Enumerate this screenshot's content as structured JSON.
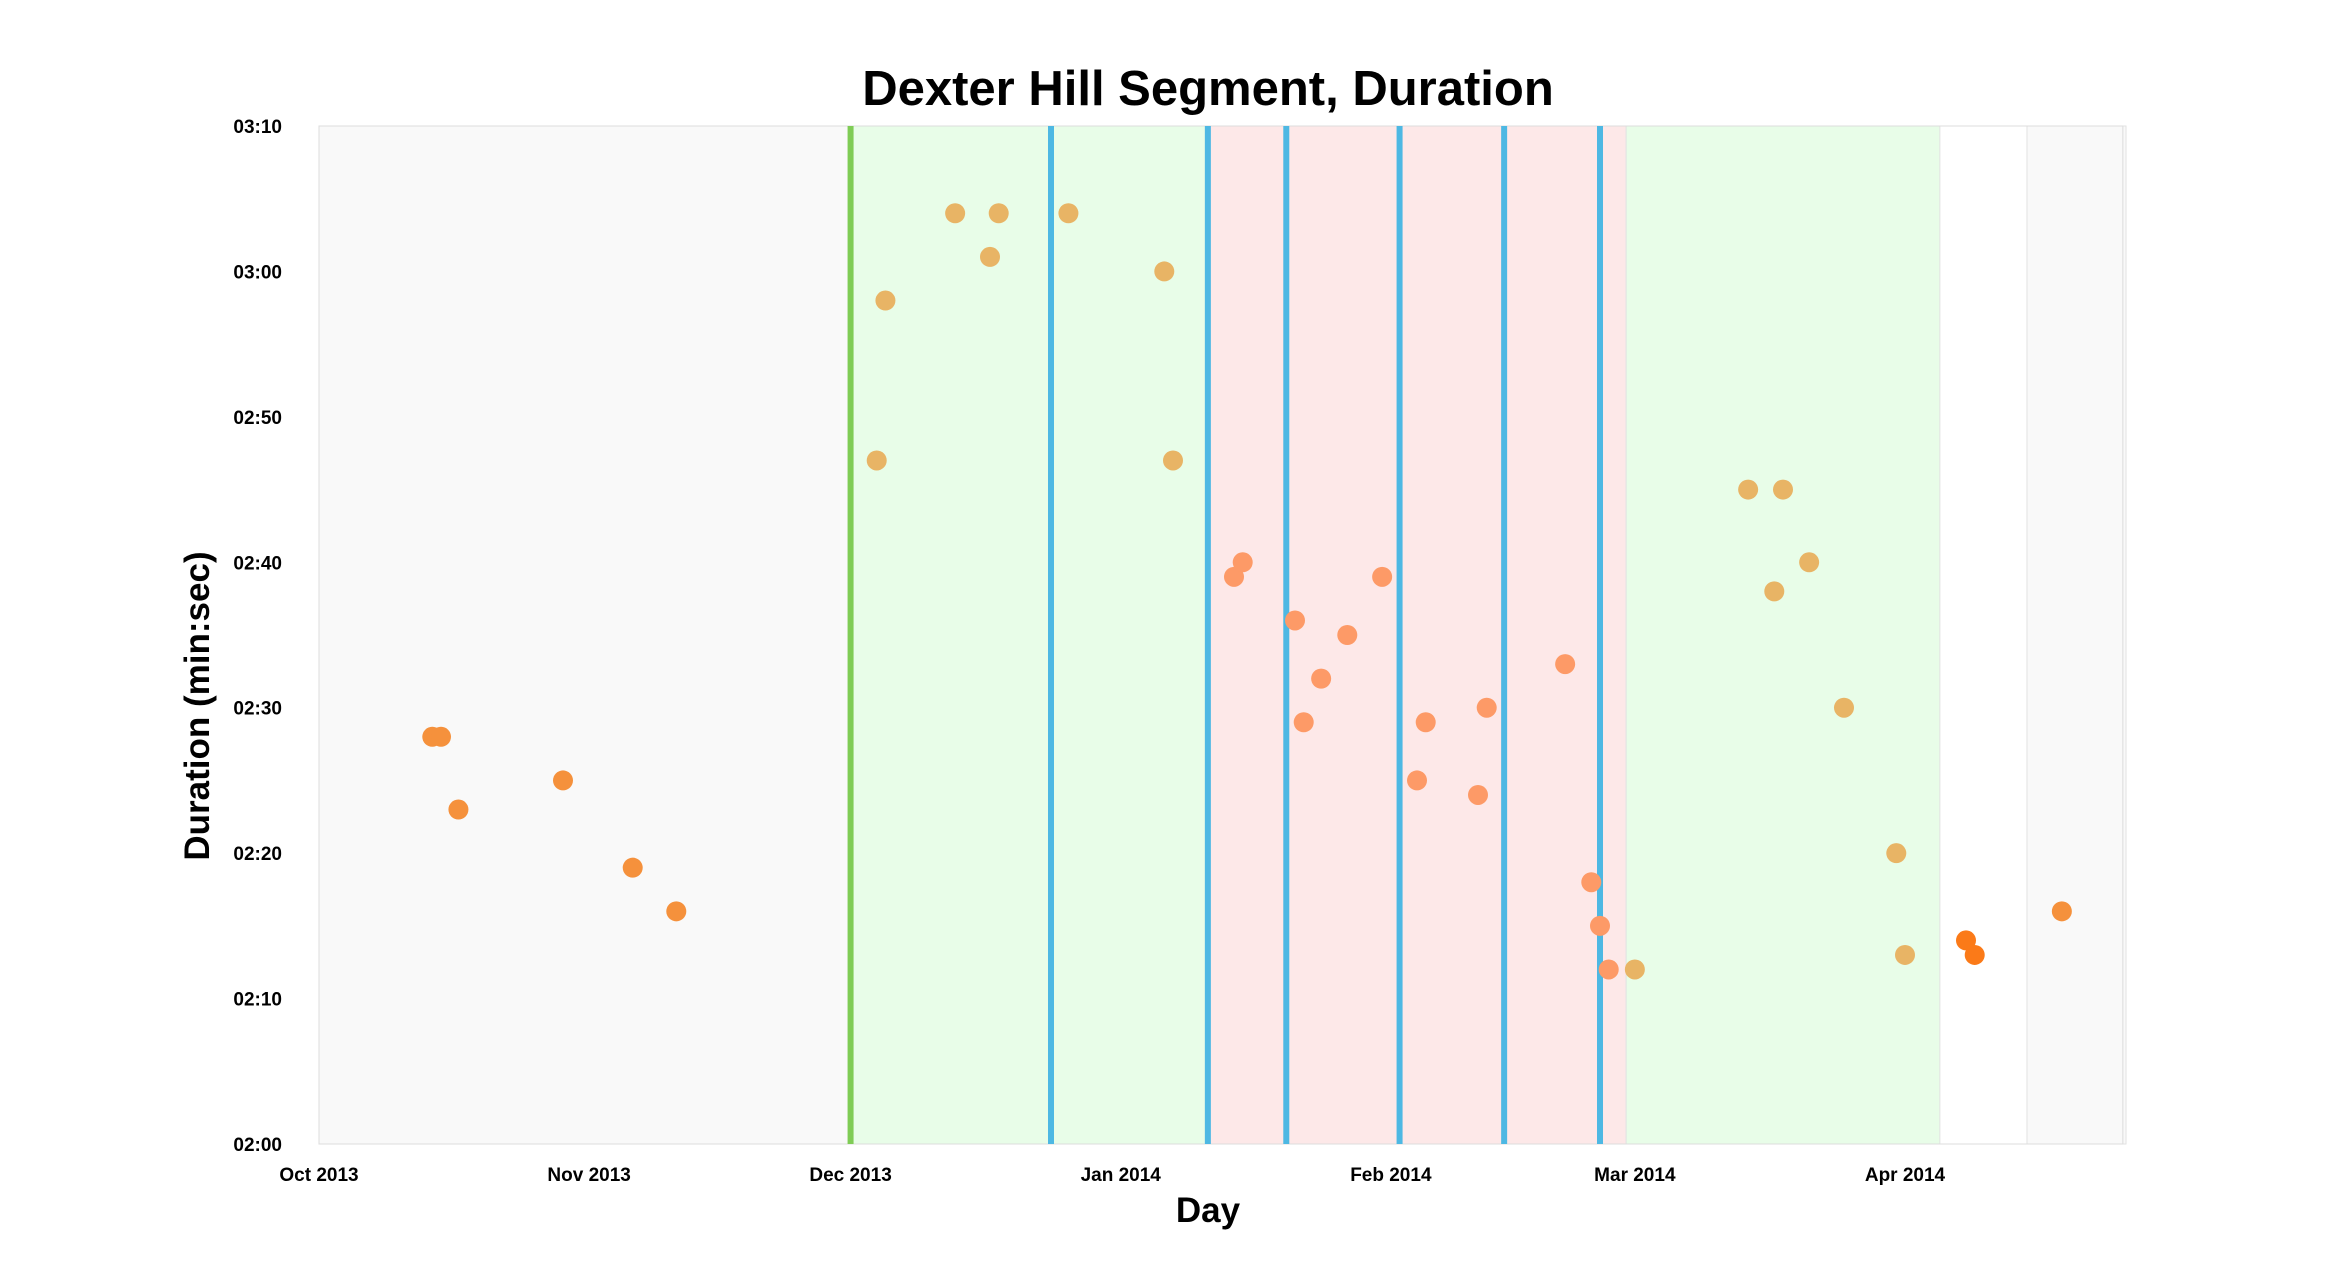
{
  "chart_data": {
    "type": "scatter",
    "title": "Dexter Hill Segment, Duration",
    "xlabel": "Day",
    "ylabel": "Duration (min:sec)",
    "x_ticks": [
      {
        "date": "2013-10-01",
        "label": "Oct 2013"
      },
      {
        "date": "2013-11-01",
        "label": "Nov 2013"
      },
      {
        "date": "2013-12-01",
        "label": "Dec 2013"
      },
      {
        "date": "2014-01-01",
        "label": "Jan 2014"
      },
      {
        "date": "2014-02-01",
        "label": "Feb 2014"
      },
      {
        "date": "2014-03-01",
        "label": "Mar 2014"
      },
      {
        "date": "2014-04-01",
        "label": "Apr 2014"
      }
    ],
    "y_ticks": [
      {
        "value": "02:00",
        "label": "02:00"
      },
      {
        "value": "02:10",
        "label": "02:10"
      },
      {
        "value": "02:20",
        "label": "02:20"
      },
      {
        "value": "02:30",
        "label": "02:30"
      },
      {
        "value": "02:40",
        "label": "02:40"
      },
      {
        "value": "02:50",
        "label": "02:50"
      },
      {
        "value": "03:00",
        "label": "03:00"
      },
      {
        "value": "03:10",
        "label": "03:10"
      }
    ],
    "xlim": [
      "2013-10-01",
      "2014-04-26"
    ],
    "ylim": [
      "02:00",
      "03:10"
    ],
    "grid": false,
    "background_regions": [
      {
        "start": "2013-10-01",
        "end": "2013-12-01",
        "color": "#f9f9f9"
      },
      {
        "start": "2013-12-01",
        "end": "2014-01-11",
        "color": "#e8fde8"
      },
      {
        "start": "2014-01-11",
        "end": "2014-02-28",
        "color": "#fde8e8"
      },
      {
        "start": "2014-02-28",
        "end": "2014-04-05",
        "color": "#e8fde8"
      },
      {
        "start": "2014-04-15",
        "end": "2014-04-30",
        "color": "#f9f9f9"
      }
    ],
    "vertical_lines": [
      {
        "date": "2013-12-01",
        "color": "#7fcc55"
      },
      {
        "date": "2013-12-24",
        "color": "#4db8e3"
      },
      {
        "date": "2014-01-11",
        "color": "#4db8e3"
      },
      {
        "date": "2014-01-20",
        "color": "#4db8e3"
      },
      {
        "date": "2014-02-02",
        "color": "#4db8e3"
      },
      {
        "date": "2014-02-14",
        "color": "#4db8e3"
      },
      {
        "date": "2014-02-25",
        "color": "#4db8e3"
      }
    ],
    "series": [
      {
        "color": "#f5913c",
        "points": [
          {
            "x": "2013-10-14",
            "y": "02:28"
          },
          {
            "x": "2013-10-15",
            "y": "02:28"
          },
          {
            "x": "2013-10-17",
            "y": "02:23"
          },
          {
            "x": "2013-10-29",
            "y": "02:25"
          },
          {
            "x": "2013-11-06",
            "y": "02:19"
          },
          {
            "x": "2013-11-11",
            "y": "02:16"
          },
          {
            "x": "2014-04-19",
            "y": "02:16"
          }
        ]
      },
      {
        "color": "#e8b465",
        "points": [
          {
            "x": "2013-12-04",
            "y": "02:47"
          },
          {
            "x": "2013-12-05",
            "y": "02:58"
          },
          {
            "x": "2013-12-13",
            "y": "03:04"
          },
          {
            "x": "2013-12-17",
            "y": "03:01"
          },
          {
            "x": "2013-12-18",
            "y": "03:04"
          },
          {
            "x": "2013-12-26",
            "y": "03:04"
          },
          {
            "x": "2014-01-06",
            "y": "03:00"
          },
          {
            "x": "2014-01-07",
            "y": "02:47"
          },
          {
            "x": "2014-03-14",
            "y": "02:45"
          },
          {
            "x": "2014-03-17",
            "y": "02:38"
          },
          {
            "x": "2014-03-18",
            "y": "02:45"
          },
          {
            "x": "2014-03-21",
            "y": "02:40"
          },
          {
            "x": "2014-03-25",
            "y": "02:30"
          },
          {
            "x": "2014-03-31",
            "y": "02:20"
          },
          {
            "x": "2014-04-01",
            "y": "02:13"
          },
          {
            "x": "2014-03-01",
            "y": "02:12"
          }
        ]
      },
      {
        "color": "#fd9a67",
        "points": [
          {
            "x": "2014-01-14",
            "y": "02:39"
          },
          {
            "x": "2014-01-15",
            "y": "02:40"
          },
          {
            "x": "2014-01-21",
            "y": "02:36"
          },
          {
            "x": "2014-01-22",
            "y": "02:29"
          },
          {
            "x": "2014-01-24",
            "y": "02:32"
          },
          {
            "x": "2014-01-27",
            "y": "02:35"
          },
          {
            "x": "2014-01-31",
            "y": "02:39"
          },
          {
            "x": "2014-02-04",
            "y": "02:25"
          },
          {
            "x": "2014-02-05",
            "y": "02:29"
          },
          {
            "x": "2014-02-11",
            "y": "02:24"
          },
          {
            "x": "2014-02-12",
            "y": "02:30"
          },
          {
            "x": "2014-02-21",
            "y": "02:33"
          },
          {
            "x": "2014-02-24",
            "y": "02:18"
          },
          {
            "x": "2014-02-25",
            "y": "02:15"
          },
          {
            "x": "2014-02-26",
            "y": "02:12"
          }
        ]
      },
      {
        "color": "#fb7a18",
        "points": [
          {
            "x": "2014-04-08",
            "y": "02:14"
          },
          {
            "x": "2014-04-09",
            "y": "02:13"
          }
        ]
      }
    ]
  }
}
